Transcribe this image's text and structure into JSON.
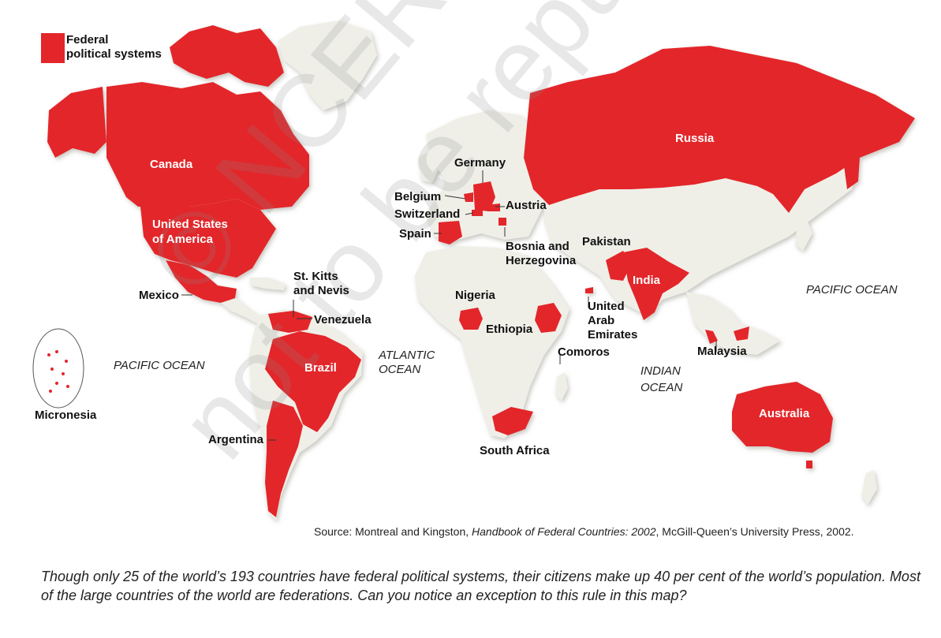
{
  "legend": {
    "label_line1": "Federal",
    "label_line2": "political systems",
    "color": "#e3262a"
  },
  "countries": {
    "canada": "Canada",
    "usa_line1": "United States",
    "usa_line2": "of America",
    "mexico": "Mexico",
    "st_kitts_line1": "St. Kitts",
    "st_kitts_line2": "and Nevis",
    "venezuela": "Venezuela",
    "brazil": "Brazil",
    "argentina": "Argentina",
    "micronesia": "Micronesia",
    "germany": "Germany",
    "belgium": "Belgium",
    "switzerland": "Switzerland",
    "austria": "Austria",
    "spain": "Spain",
    "bosnia_line1": "Bosnia and",
    "bosnia_line2": "Herzegovina",
    "pakistan": "Pakistan",
    "india": "India",
    "uae_line1": "United",
    "uae_line2": "Arab",
    "uae_line3": "Emirates",
    "nigeria": "Nigeria",
    "ethiopia": "Ethiopia",
    "comoros": "Comoros",
    "south_africa": "South Africa",
    "russia": "Russia",
    "malaysia": "Malaysia",
    "australia": "Australia"
  },
  "oceans": {
    "pacific_west": "PACIFIC OCEAN",
    "pacific_east": "PACIFIC OCEAN",
    "atlantic_line1": "ATLANTIC",
    "atlantic_line2": "OCEAN",
    "indian_line1": "INDIAN",
    "indian_line2": "OCEAN"
  },
  "source": {
    "prefix": "Source: Montreal and Kingston, ",
    "title": "Handbook of Federal Countries: 2002",
    "suffix": ", McGill-Queen’s University Press, 2002."
  },
  "caption": "Though only 25 of the world’s 193 countries have federal political systems, their citizens make up 40 per cent of the world’s population. Most of the large countries of the world are federations. Can you notice an exception to this rule in this map?",
  "watermark": {
    "line1": "© NCERT",
    "line2": "not to be republished"
  },
  "colors": {
    "federal": "#e3262a",
    "land": "#efefe8",
    "land_shadow": "#d9d9d0"
  }
}
